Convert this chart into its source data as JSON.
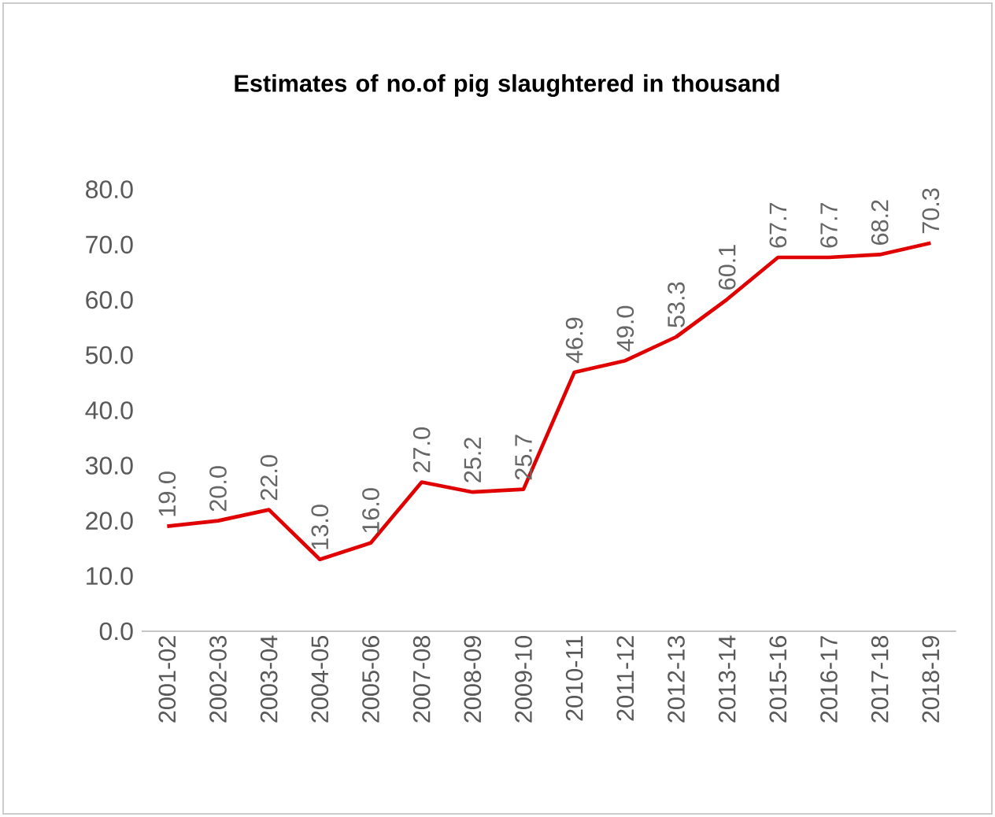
{
  "chart_data": {
    "type": "line",
    "title": "Estimates of no.of pig slaughtered in thousand",
    "categories": [
      "2001-02",
      "2002-03",
      "2003-04",
      "2004-05",
      "2005-06",
      "2007-08",
      "2008-09",
      "2009-10",
      "2010-11",
      "2011-12",
      "2012-13",
      "2013-14",
      "2015-16",
      "2016-17",
      "2017-18",
      "2018-19"
    ],
    "values": [
      19.0,
      20.0,
      22.0,
      13.0,
      16.0,
      27.0,
      25.2,
      25.7,
      46.9,
      49.0,
      53.3,
      60.1,
      67.7,
      67.7,
      68.2,
      70.3
    ],
    "color": "#e00000",
    "ylim": [
      0,
      80
    ],
    "yticks": [
      {
        "value": 0,
        "label": "0.0"
      },
      {
        "value": 10,
        "label": "10.0"
      },
      {
        "value": 20,
        "label": "20.0"
      },
      {
        "value": 30,
        "label": "30.0"
      },
      {
        "value": 40,
        "label": "40.0"
      },
      {
        "value": 50,
        "label": "50.0"
      },
      {
        "value": 60,
        "label": "60.0"
      },
      {
        "value": 70,
        "label": "70.0"
      },
      {
        "value": 80,
        "label": "80.0"
      }
    ],
    "value_labels": [
      "19.0",
      "20.0",
      "22.0",
      "13.0",
      "16.0",
      "27.0",
      "25.2",
      "25.7",
      "46.9",
      "49.0",
      "53.3",
      "60.1",
      "67.7",
      "67.7",
      "68.2",
      "70.3"
    ]
  }
}
